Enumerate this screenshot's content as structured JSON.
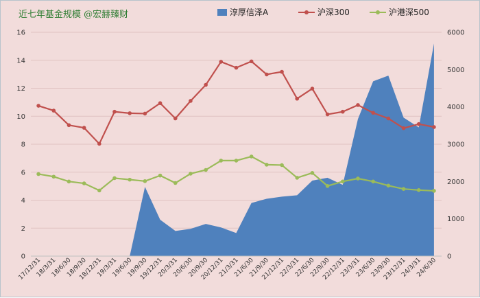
{
  "chart_data": {
    "type": "area",
    "title": "近七年基金规模 @宏赫臻财",
    "grid": true,
    "legend_position": "top-right",
    "categories": [
      "17/12/31",
      "18/3/31",
      "18/6/30",
      "18/9/30",
      "18/12/31",
      "19/3/31",
      "19/6/30",
      "19/9/30",
      "19/12/31",
      "20/3/31",
      "20/6/30",
      "20/9/30",
      "20/12/31",
      "21/3/31",
      "21/6/30",
      "21/9/30",
      "21/12/31",
      "22/3/31",
      "22/6/30",
      "22/9/30",
      "22/12/31",
      "23/3/31",
      "23/6/30",
      "23/9/30",
      "23/12/31",
      "24/3/31",
      "24/6/30"
    ],
    "left_axis": {
      "ylim": [
        0,
        16
      ],
      "ticks": [
        0,
        2,
        4,
        6,
        8,
        10,
        12,
        14,
        16
      ]
    },
    "right_axis": {
      "ylim": [
        0,
        6000
      ],
      "ticks": [
        0,
        1000,
        2000,
        3000,
        4000,
        5000,
        6000
      ]
    },
    "series": [
      {
        "name": "淳厚信泽A",
        "type": "area",
        "axis": "left",
        "color": "#4f81bd",
        "values": [
          0,
          0,
          0,
          0,
          0,
          0,
          0,
          4.95,
          2.6,
          1.8,
          1.95,
          2.3,
          2.05,
          1.65,
          3.8,
          4.1,
          4.25,
          4.35,
          5.4,
          5.6,
          5.1,
          9.8,
          12.5,
          12.9,
          9.9,
          9.2,
          15.2
        ]
      },
      {
        "name": "沪深300",
        "type": "line",
        "axis": "right",
        "color": "#c0504d",
        "values": [
          4030,
          3900,
          3510,
          3440,
          3010,
          3870,
          3830,
          3820,
          4100,
          3690,
          4160,
          4590,
          5210,
          5050,
          5220,
          4870,
          4940,
          4220,
          4490,
          3800,
          3870,
          4050,
          3840,
          3690,
          3430,
          3540,
          3460
        ]
      },
      {
        "name": "沪港深500",
        "type": "line",
        "axis": "right",
        "color": "#9bbb59",
        "values": [
          2200,
          2130,
          2000,
          1950,
          1760,
          2090,
          2050,
          2010,
          2160,
          1960,
          2210,
          2310,
          2560,
          2560,
          2670,
          2450,
          2440,
          2100,
          2230,
          1880,
          2000,
          2080,
          2000,
          1890,
          1800,
          1770,
          1750
        ]
      }
    ]
  }
}
